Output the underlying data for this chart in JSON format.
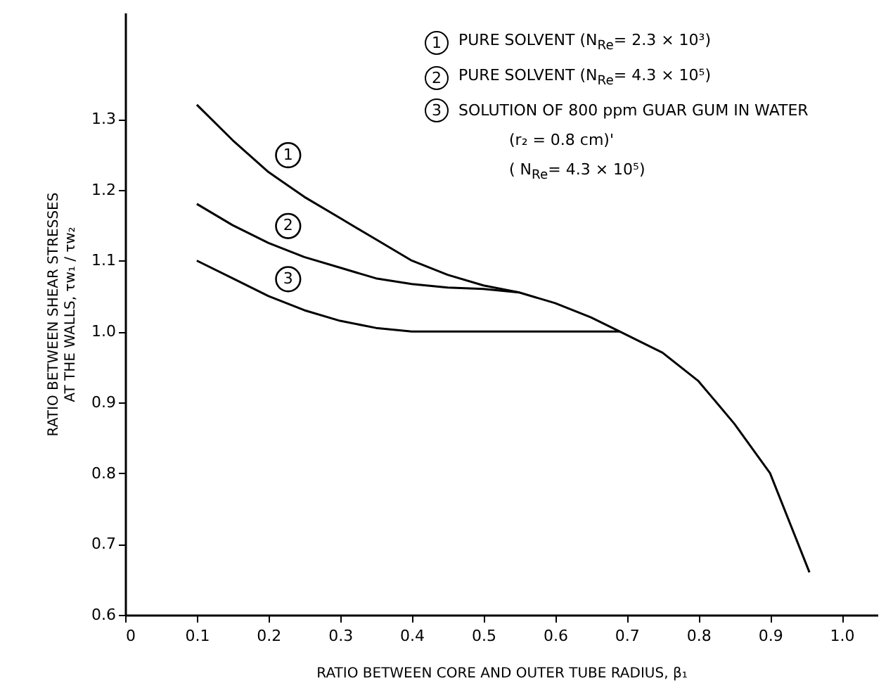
{
  "chart_data": {
    "type": "line",
    "xlabel": "RATIO BETWEEN CORE AND OUTER TUBE RADIUS, β₁",
    "ylabel": "RATIO BETWEEN SHEAR STRESSES AT THE WALLS, τw₁ / τw₂",
    "xlim": [
      0,
      1.05
    ],
    "xticks": [
      0,
      0.1,
      0.2,
      0.3,
      0.4,
      0.5,
      0.6,
      0.7,
      0.8,
      0.9,
      {
        "value": 1,
        "label": "1.0"
      }
    ],
    "ylim": [
      0.6,
      1.45
    ],
    "yticks": [
      0.6,
      0.7,
      0.8,
      0.9,
      {
        "value": 1,
        "label": "1.0"
      },
      1.1,
      1.2,
      1.3
    ],
    "grid": false,
    "legend": "top",
    "series": [
      {
        "name": "1",
        "color": "#000000",
        "x": [
          0.1,
          0.15,
          0.2,
          0.25,
          0.3,
          0.35,
          0.4,
          0.45,
          0.5,
          0.55,
          0.6,
          0.65,
          0.69,
          0.75,
          0.8,
          0.85,
          0.9,
          0.955
        ],
        "values": [
          1.32,
          1.27,
          1.225,
          1.19,
          1.16,
          1.13,
          1.1,
          1.08,
          1.065,
          1.055,
          1.04,
          1.02,
          1.0,
          0.97,
          0.93,
          0.87,
          0.8,
          0.66
        ]
      },
      {
        "name": "2",
        "color": "#000000",
        "x": [
          0.1,
          0.15,
          0.2,
          0.25,
          0.3,
          0.35,
          0.4,
          0.45,
          0.5,
          0.55
        ],
        "values": [
          1.18,
          1.15,
          1.125,
          1.105,
          1.09,
          1.075,
          1.067,
          1.062,
          1.06,
          1.055
        ]
      },
      {
        "name": "3",
        "color": "#000000",
        "x": [
          0.1,
          0.15,
          0.2,
          0.25,
          0.3,
          0.35,
          0.4,
          0.5,
          0.6,
          0.69
        ],
        "values": [
          1.1,
          1.075,
          1.05,
          1.03,
          1.015,
          1.005,
          1.0,
          1.0,
          1.0,
          1.0
        ]
      }
    ],
    "annotations": [
      "PURE SOLVENT (N$_{Re}$= 2.3 × 10³)",
      "PURE SOLVENT (N$_{Re}$= 4.3 × 10⁵)",
      "SOLUTION OF 800 ppm GUAR GUM IN WATER",
      "(r₂ = 0.8 cm)'",
      "( N$_{Re}$= 4.3 × 10⁵)"
    ]
  }
}
